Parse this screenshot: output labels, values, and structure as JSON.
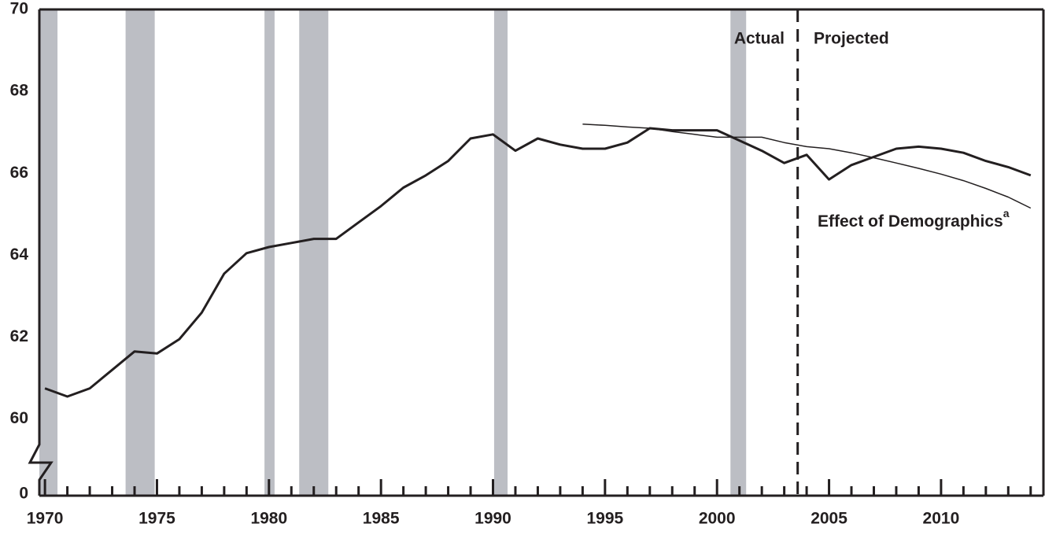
{
  "chart_data": {
    "type": "line",
    "x": [
      1970,
      1971,
      1972,
      1973,
      1974,
      1975,
      1976,
      1977,
      1978,
      1979,
      1980,
      1981,
      1982,
      1983,
      1984,
      1985,
      1986,
      1987,
      1988,
      1989,
      1990,
      1991,
      1992,
      1993,
      1994,
      1995,
      1996,
      1997,
      1998,
      1999,
      2000,
      2001,
      2002,
      2003,
      2004,
      2005,
      2006,
      2007,
      2008,
      2009,
      2010,
      2011,
      2012,
      2013,
      2014
    ],
    "series": [
      {
        "color": "#231f20",
        "width": 3,
        "values": [
          60.75,
          60.55,
          60.75,
          61.2,
          61.65,
          61.6,
          61.95,
          62.6,
          63.55,
          64.05,
          64.2,
          64.3,
          64.4,
          64.4,
          64.8,
          65.2,
          65.65,
          65.95,
          66.3,
          66.85,
          66.95,
          66.55,
          66.85,
          66.7,
          66.6,
          66.6,
          66.75,
          67.1,
          67.05,
          67.05,
          67.05,
          66.8,
          66.55,
          66.25,
          66.45,
          65.85,
          66.2,
          66.4,
          66.6,
          66.65,
          66.6,
          66.5,
          66.3,
          66.15,
          65.95
        ]
      },
      {
        "name": "Effect of Demographics",
        "name_note": "a",
        "color": "#231f20",
        "width": 1.5,
        "values": [
          null,
          null,
          null,
          null,
          null,
          null,
          null,
          null,
          null,
          null,
          null,
          null,
          null,
          null,
          null,
          null,
          null,
          null,
          null,
          null,
          null,
          null,
          null,
          null,
          67.2,
          67.17,
          67.13,
          67.1,
          67.02,
          66.95,
          66.88,
          66.88,
          66.88,
          66.75,
          66.65,
          66.6,
          66.5,
          66.38,
          66.25,
          66.12,
          65.98,
          65.82,
          65.63,
          65.42,
          65.15
        ]
      }
    ],
    "xlim": [
      1969.75,
      2014.57
    ],
    "xticks": [
      1970,
      1975,
      1980,
      1985,
      1990,
      1995,
      2000,
      2005,
      2010
    ],
    "minor_xticks": [
      1971,
      1972,
      1973,
      1974,
      1976,
      1977,
      1978,
      1979,
      1981,
      1982,
      1983,
      1984,
      1986,
      1987,
      1988,
      1989,
      1991,
      1992,
      1993,
      1994,
      1996,
      1997,
      1998,
      1999,
      2001,
      2002,
      2003,
      2004,
      2006,
      2007,
      2008,
      2009,
      2011,
      2012,
      2013,
      2014
    ],
    "ylim": [
      58.13,
      70
    ],
    "yticks": [
      0,
      60,
      62,
      64,
      66,
      68,
      70
    ],
    "axis_break": true,
    "recessions": [
      [
        1969.75,
        1970.56
      ],
      [
        1973.6,
        1974.9
      ],
      [
        1979.8,
        1980.25
      ],
      [
        1981.35,
        1982.65
      ],
      [
        1990.05,
        1990.65
      ],
      [
        2000.6,
        2001.3
      ]
    ],
    "recession_color": "#bcbec4",
    "divider_x": 2003.6,
    "divider_left_label": "Actual",
    "divider_right_label": "Projected"
  }
}
